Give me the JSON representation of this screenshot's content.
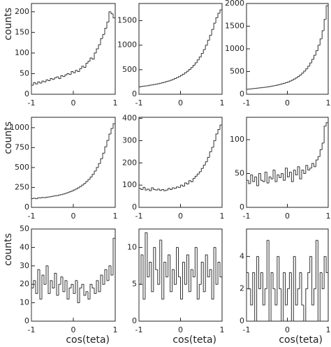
{
  "chart_data": [
    {
      "type": "histogram",
      "ylabel": "counts",
      "xlim": [
        -1,
        1
      ],
      "xticks": [
        -1,
        0,
        1
      ],
      "ylim": [
        0,
        220
      ],
      "yticks": [
        0,
        50,
        100,
        150,
        200
      ],
      "bins": [
        -1,
        -0.95,
        -0.9,
        -0.85,
        -0.8,
        -0.75,
        -0.7,
        -0.65,
        -0.6,
        -0.55,
        -0.5,
        -0.45,
        -0.4,
        -0.35,
        -0.3,
        -0.25,
        -0.2,
        -0.15,
        -0.1,
        -0.05,
        0,
        0.05,
        0.1,
        0.15,
        0.2,
        0.25,
        0.3,
        0.35,
        0.4,
        0.45,
        0.5,
        0.55,
        0.6,
        0.65,
        0.7,
        0.75,
        0.8,
        0.85,
        0.9,
        0.95,
        1
      ],
      "values": [
        22,
        28,
        25,
        30,
        27,
        32,
        30,
        35,
        33,
        38,
        36,
        40,
        42,
        38,
        45,
        43,
        47,
        50,
        48,
        55,
        52,
        58,
        55,
        62,
        68,
        65,
        75,
        80,
        88,
        85,
        100,
        110,
        120,
        135,
        145,
        160,
        175,
        200,
        195,
        185
      ]
    },
    {
      "type": "histogram",
      "xlim": [
        -1,
        1
      ],
      "xticks": [
        -1,
        0,
        1
      ],
      "ylim": [
        0,
        1850
      ],
      "yticks": [
        0,
        500,
        1000,
        1500
      ],
      "bins": [
        -1,
        -0.95,
        -0.9,
        -0.85,
        -0.8,
        -0.75,
        -0.7,
        -0.65,
        -0.6,
        -0.55,
        -0.5,
        -0.45,
        -0.4,
        -0.35,
        -0.3,
        -0.25,
        -0.2,
        -0.15,
        -0.1,
        -0.05,
        0,
        0.05,
        0.1,
        0.15,
        0.2,
        0.25,
        0.3,
        0.35,
        0.4,
        0.45,
        0.5,
        0.55,
        0.6,
        0.65,
        0.7,
        0.75,
        0.8,
        0.85,
        0.9,
        0.95,
        1
      ],
      "values": [
        150,
        160,
        165,
        170,
        175,
        185,
        190,
        200,
        205,
        215,
        225,
        235,
        245,
        260,
        270,
        285,
        300,
        320,
        340,
        360,
        385,
        410,
        440,
        470,
        505,
        545,
        590,
        640,
        700,
        760,
        830,
        910,
        1000,
        1100,
        1200,
        1320,
        1450,
        1560,
        1650,
        1720
      ]
    },
    {
      "type": "histogram",
      "xlim": [
        -1,
        1
      ],
      "xticks": [
        -1,
        0,
        1
      ],
      "ylim": [
        0,
        2000
      ],
      "yticks": [
        0,
        500,
        1000,
        1500,
        2000
      ],
      "bins": [
        -1,
        -0.95,
        -0.9,
        -0.85,
        -0.8,
        -0.75,
        -0.7,
        -0.65,
        -0.6,
        -0.55,
        -0.5,
        -0.45,
        -0.4,
        -0.35,
        -0.3,
        -0.25,
        -0.2,
        -0.15,
        -0.1,
        -0.05,
        0,
        0.05,
        0.1,
        0.15,
        0.2,
        0.25,
        0.3,
        0.35,
        0.4,
        0.45,
        0.5,
        0.55,
        0.6,
        0.65,
        0.7,
        0.75,
        0.8,
        0.85,
        0.9,
        0.95,
        1
      ],
      "values": [
        110,
        115,
        120,
        125,
        128,
        135,
        140,
        145,
        150,
        155,
        162,
        170,
        178,
        186,
        195,
        205,
        215,
        228,
        240,
        255,
        270,
        290,
        310,
        335,
        360,
        390,
        425,
        465,
        510,
        560,
        620,
        690,
        770,
        860,
        960,
        1080,
        1220,
        1400,
        1650,
        1950
      ]
    },
    {
      "type": "histogram",
      "ylabel": "counts",
      "xlim": [
        -1,
        1
      ],
      "xticks": [
        -1,
        0,
        1
      ],
      "ylim": [
        0,
        1130
      ],
      "yticks": [
        0,
        250,
        500,
        750,
        1000
      ],
      "bins": [
        -1,
        -0.95,
        -0.9,
        -0.85,
        -0.8,
        -0.75,
        -0.7,
        -0.65,
        -0.6,
        -0.55,
        -0.5,
        -0.45,
        -0.4,
        -0.35,
        -0.3,
        -0.25,
        -0.2,
        -0.15,
        -0.1,
        -0.05,
        0,
        0.05,
        0.1,
        0.15,
        0.2,
        0.25,
        0.3,
        0.35,
        0.4,
        0.45,
        0.5,
        0.55,
        0.6,
        0.65,
        0.7,
        0.75,
        0.8,
        0.85,
        0.9,
        0.95,
        1
      ],
      "values": [
        110,
        115,
        108,
        120,
        118,
        125,
        122,
        128,
        130,
        135,
        140,
        145,
        148,
        155,
        160,
        168,
        175,
        185,
        195,
        205,
        218,
        230,
        245,
        262,
        280,
        300,
        325,
        350,
        380,
        415,
        455,
        500,
        550,
        610,
        680,
        760,
        840,
        920,
        990,
        1050
      ]
    },
    {
      "type": "histogram",
      "xlim": [
        -1,
        1
      ],
      "xticks": [
        -1,
        0,
        1
      ],
      "ylim": [
        0,
        405
      ],
      "yticks": [
        0,
        100,
        200,
        300,
        400
      ],
      "bins": [
        -1,
        -0.95,
        -0.9,
        -0.85,
        -0.8,
        -0.75,
        -0.7,
        -0.65,
        -0.6,
        -0.55,
        -0.5,
        -0.45,
        -0.4,
        -0.35,
        -0.3,
        -0.25,
        -0.2,
        -0.15,
        -0.1,
        -0.05,
        0,
        0.05,
        0.1,
        0.15,
        0.2,
        0.25,
        0.3,
        0.35,
        0.4,
        0.45,
        0.5,
        0.55,
        0.6,
        0.65,
        0.7,
        0.75,
        0.8,
        0.85,
        0.9,
        0.95,
        1
      ],
      "values": [
        85,
        80,
        90,
        78,
        82,
        75,
        88,
        80,
        78,
        82,
        76,
        80,
        75,
        78,
        85,
        80,
        88,
        85,
        92,
        90,
        100,
        95,
        110,
        105,
        120,
        115,
        130,
        140,
        150,
        160,
        175,
        190,
        205,
        225,
        250,
        270,
        300,
        330,
        350,
        370
      ]
    },
    {
      "type": "histogram",
      "xlim": [
        -1,
        1
      ],
      "xticks": [
        -1,
        0,
        1
      ],
      "ylim": [
        0,
        133
      ],
      "yticks": [
        0,
        50,
        100
      ],
      "bins": [
        -1,
        -0.95,
        -0.9,
        -0.85,
        -0.8,
        -0.75,
        -0.7,
        -0.65,
        -0.6,
        -0.55,
        -0.5,
        -0.45,
        -0.4,
        -0.35,
        -0.3,
        -0.25,
        -0.2,
        -0.15,
        -0.1,
        -0.05,
        0,
        0.05,
        0.1,
        0.15,
        0.2,
        0.25,
        0.3,
        0.35,
        0.4,
        0.45,
        0.5,
        0.55,
        0.6,
        0.65,
        0.7,
        0.75,
        0.8,
        0.85,
        0.9,
        0.95,
        1
      ],
      "values": [
        40,
        35,
        48,
        38,
        45,
        32,
        50,
        40,
        38,
        52,
        36,
        45,
        42,
        55,
        38,
        48,
        44,
        50,
        40,
        58,
        45,
        52,
        38,
        55,
        48,
        60,
        42,
        55,
        50,
        62,
        55,
        58,
        65,
        60,
        70,
        75,
        85,
        95,
        120,
        125
      ]
    },
    {
      "type": "histogram",
      "ylabel": "counts",
      "xlabel": "cos(teta)",
      "xlim": [
        -1,
        1
      ],
      "xticks": [
        -1,
        0,
        1
      ],
      "ylim": [
        0,
        50
      ],
      "yticks": [
        0,
        10,
        20,
        30,
        40,
        50
      ],
      "bins": [
        -1,
        -0.95,
        -0.9,
        -0.85,
        -0.8,
        -0.75,
        -0.7,
        -0.65,
        -0.6,
        -0.55,
        -0.5,
        -0.45,
        -0.4,
        -0.35,
        -0.3,
        -0.25,
        -0.2,
        -0.15,
        -0.1,
        -0.05,
        0,
        0.05,
        0.1,
        0.15,
        0.2,
        0.25,
        0.3,
        0.35,
        0.4,
        0.45,
        0.5,
        0.55,
        0.6,
        0.65,
        0.7,
        0.75,
        0.8,
        0.85,
        0.9,
        0.95,
        1
      ],
      "values": [
        18,
        22,
        15,
        28,
        12,
        25,
        20,
        30,
        15,
        22,
        18,
        26,
        14,
        20,
        24,
        16,
        22,
        12,
        18,
        20,
        15,
        22,
        10,
        18,
        20,
        14,
        16,
        12,
        20,
        18,
        15,
        22,
        16,
        25,
        20,
        28,
        22,
        30,
        25,
        45
      ]
    },
    {
      "type": "histogram",
      "xlabel": "cos(teta)",
      "xlim": [
        -1,
        1
      ],
      "xticks": [
        -1,
        0,
        1
      ],
      "ylim": [
        0,
        12.5
      ],
      "yticks": [
        0,
        5,
        10
      ],
      "bins": [
        -1,
        -0.95,
        -0.9,
        -0.85,
        -0.8,
        -0.75,
        -0.7,
        -0.65,
        -0.6,
        -0.55,
        -0.5,
        -0.45,
        -0.4,
        -0.35,
        -0.3,
        -0.25,
        -0.2,
        -0.15,
        -0.1,
        -0.05,
        0,
        0.05,
        0.1,
        0.15,
        0.2,
        0.25,
        0.3,
        0.35,
        0.4,
        0.45,
        0.5,
        0.55,
        0.6,
        0.65,
        0.7,
        0.75,
        0.8,
        0.85,
        0.9,
        0.95,
        1
      ],
      "values": [
        5,
        9,
        3,
        12,
        6,
        8,
        4,
        10,
        7,
        5,
        11,
        3,
        8,
        6,
        9,
        4,
        7,
        5,
        10,
        6,
        3,
        8,
        5,
        9,
        4,
        7,
        6,
        10,
        3,
        5,
        8,
        4,
        9,
        6,
        7,
        3,
        10,
        5,
        8,
        6
      ]
    },
    {
      "type": "histogram",
      "xlabel": "cos(teta)",
      "xlim": [
        -1,
        1
      ],
      "xticks": [
        -1,
        0,
        1
      ],
      "ylim": [
        0,
        5.7
      ],
      "yticks": [
        0,
        2,
        4
      ],
      "bins": [
        -1,
        -0.95,
        -0.9,
        -0.85,
        -0.8,
        -0.75,
        -0.7,
        -0.65,
        -0.6,
        -0.55,
        -0.5,
        -0.45,
        -0.4,
        -0.35,
        -0.3,
        -0.25,
        -0.2,
        -0.15,
        -0.1,
        -0.05,
        0,
        0.05,
        0.1,
        0.15,
        0.2,
        0.25,
        0.3,
        0.35,
        0.4,
        0.45,
        0.5,
        0.55,
        0.6,
        0.65,
        0.7,
        0.75,
        0.8,
        0.85,
        0.9,
        0.95,
        1
      ],
      "values": [
        3,
        2,
        1,
        3,
        0,
        4,
        2,
        3,
        1,
        2,
        5,
        0,
        3,
        2,
        1,
        4,
        2,
        0,
        3,
        1,
        2,
        3,
        0,
        4,
        1,
        2,
        3,
        1,
        0,
        2,
        3,
        4,
        1,
        2,
        5,
        0,
        3,
        2,
        4,
        3
      ]
    }
  ]
}
